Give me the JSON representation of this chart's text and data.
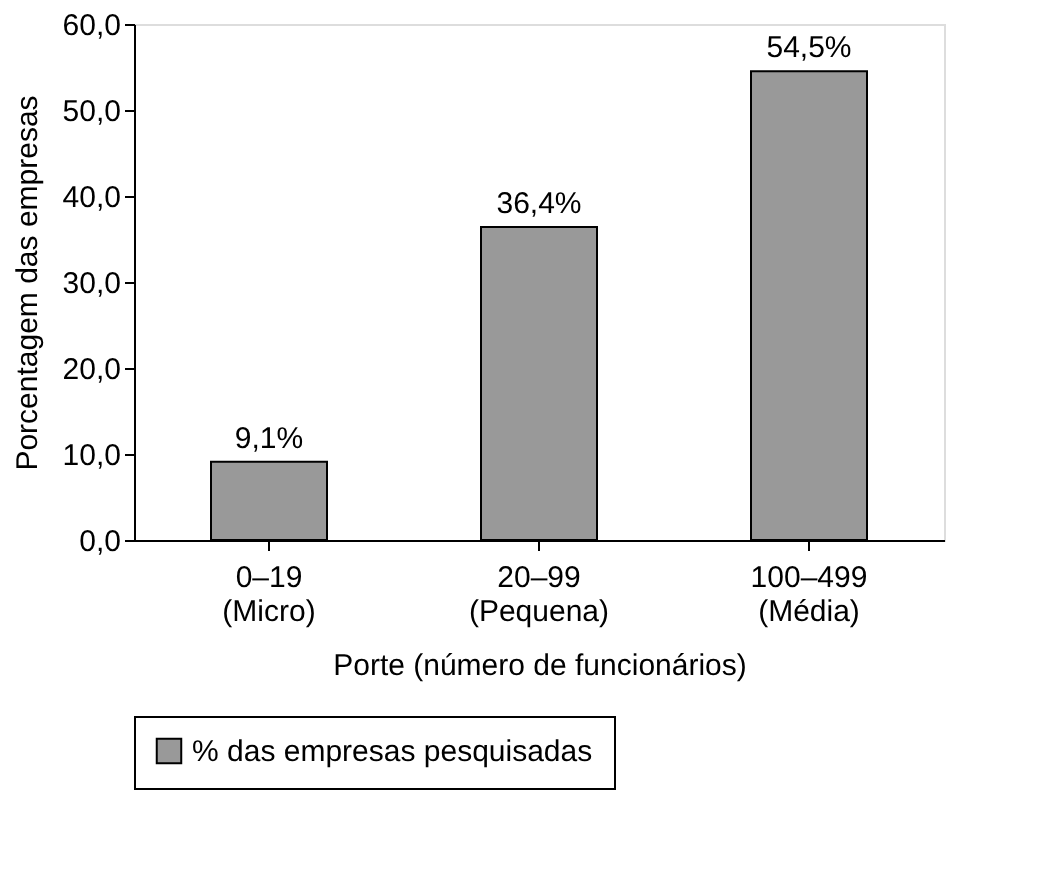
{
  "chart_data": {
    "type": "bar",
    "categories": [
      "0–19\n(Micro)",
      "20–99\n(Pequena)",
      "100–499\n(Média)"
    ],
    "series": [
      {
        "name": "% das empresas pesquisadas",
        "color": "#999999",
        "values": [
          9.1,
          36.4,
          54.5
        ],
        "value_labels": [
          "9,1%",
          "36,4%",
          "54,5%"
        ]
      }
    ],
    "xlabel": "Porte (número de funcionários)",
    "ylabel": "Porcentagem das empresas",
    "ylim": [
      0,
      60
    ],
    "yticks": [
      {
        "value": 0,
        "label": "0,0"
      },
      {
        "value": 10,
        "label": "10,0"
      },
      {
        "value": 20,
        "label": "20,0"
      },
      {
        "value": 30,
        "label": "30,0"
      },
      {
        "value": 40,
        "label": "40,0"
      },
      {
        "value": 50,
        "label": "50,0"
      },
      {
        "value": 60,
        "label": "60,0"
      }
    ],
    "grid": false,
    "legend": "bottom"
  }
}
